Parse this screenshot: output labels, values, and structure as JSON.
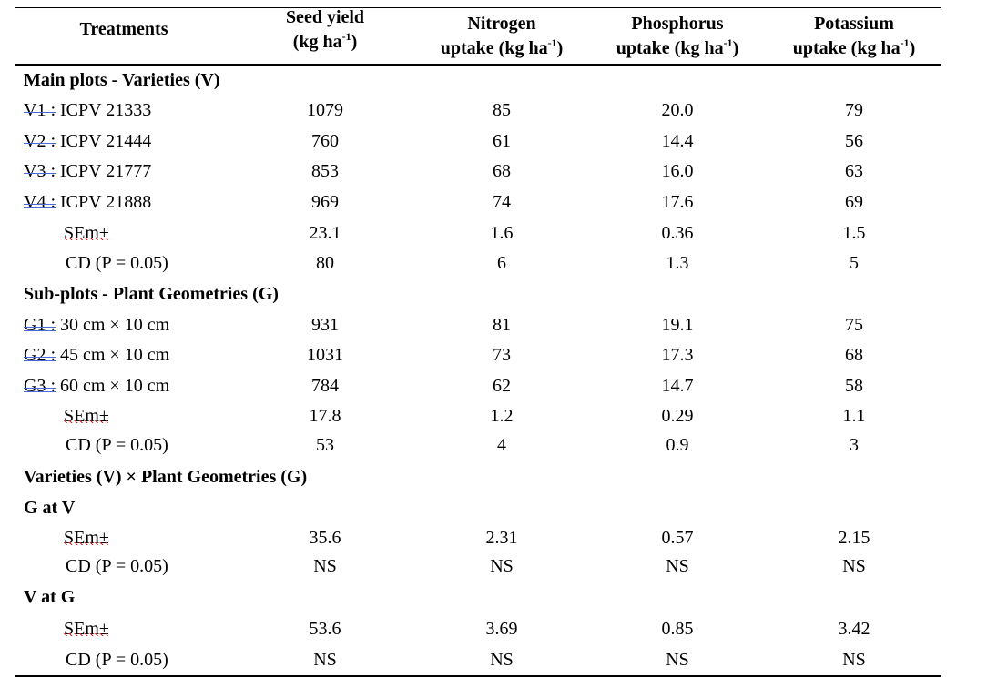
{
  "headers": {
    "treatments": "Treatments",
    "seed_yield": {
      "line1": "Seed yield",
      "line2": "(kg ha",
      "sup": "-1",
      "close": ")"
    },
    "nitrogen": {
      "line1": "Nitrogen",
      "line2": "uptake (kg ha",
      "sup": "-1",
      "close": ")"
    },
    "phosphorus": {
      "line1": "Phosphorus",
      "line2": "uptake (kg ha",
      "sup": "-1",
      "close": ")"
    },
    "potassium": {
      "line1": "Potassium",
      "line2": "uptake (kg ha",
      "sup": "-1",
      "close": ")"
    }
  },
  "sections": {
    "main": "Main plots - Varieties (V)",
    "sub": "Sub-plots - Plant Geometries (G)",
    "interaction": "Varieties (V) × Plant Geometries (G)",
    "g_at_v": "G at V",
    "v_at_g": "V at G"
  },
  "varieties": [
    {
      "code": "V1 :",
      "name": "ICPV 21333",
      "values": [
        "1079",
        "85",
        "20.0",
        "79"
      ]
    },
    {
      "code": "V2 :",
      "name": "ICPV 21444",
      "values": [
        "760",
        "61",
        "14.4",
        "56"
      ]
    },
    {
      "code": "V3 :",
      "name": "ICPV 21777",
      "values": [
        "853",
        "68",
        "16.0",
        "63"
      ]
    },
    {
      "code": "V4 :",
      "name": "ICPV 21888",
      "values": [
        "969",
        "74",
        "17.6",
        "69"
      ]
    }
  ],
  "main_stats": {
    "sem": {
      "label": "SEm±",
      "values": [
        "23.1",
        "1.6",
        "0.36",
        "1.5"
      ]
    },
    "cd": {
      "label": "CD (P = 0.05)",
      "values": [
        "80",
        "6",
        "1.3",
        "5"
      ]
    }
  },
  "geometries": [
    {
      "code": "G1 :",
      "name": "30 cm × 10 cm",
      "values": [
        "931",
        "81",
        "19.1",
        "75"
      ]
    },
    {
      "code": "G2 :",
      "name": "45 cm × 10 cm",
      "values": [
        "1031",
        "73",
        "17.3",
        "68"
      ]
    },
    {
      "code": "G3 :",
      "name": "60 cm × 10 cm",
      "values": [
        "784",
        "62",
        "14.7",
        "58"
      ]
    }
  ],
  "sub_stats": {
    "sem": {
      "label": "SEm±",
      "values": [
        "17.8",
        "1.2",
        "0.29",
        "1.1"
      ]
    },
    "cd": {
      "label": "CD (P = 0.05)",
      "values": [
        "53",
        "4",
        "0.9",
        "3"
      ]
    }
  },
  "g_at_v_stats": {
    "sem": {
      "label": "SEm±",
      "values": [
        "35.6",
        "2.31",
        "0.57",
        "2.15"
      ]
    },
    "cd": {
      "label": "CD (P = 0.05)",
      "values": [
        "NS",
        "NS",
        "NS",
        "NS"
      ]
    }
  },
  "v_at_g_stats": {
    "sem": {
      "label": "SEm±",
      "values": [
        "53.6",
        "3.69",
        "0.85",
        "3.42"
      ]
    },
    "cd": {
      "label": "CD (P = 0.05)",
      "values": [
        "NS",
        "NS",
        "NS",
        "NS"
      ]
    }
  }
}
